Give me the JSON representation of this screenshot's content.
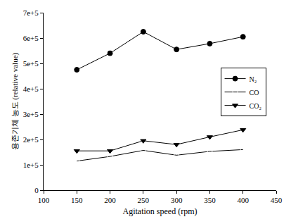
{
  "chart_data": {
    "type": "line",
    "x_label": "Agitation speed (rpm)",
    "y_label": "용존기체 농도 (relative value)",
    "xlim": [
      100,
      450
    ],
    "xticks": [
      100,
      150,
      200,
      250,
      300,
      350,
      400,
      450
    ],
    "ylim": [
      0,
      700000
    ],
    "yticks": [
      0,
      {
        "value": 100000,
        "label": "1e+5"
      },
      {
        "value": 200000,
        "label": "2e+5"
      },
      {
        "value": 300000,
        "label": "3e+5"
      },
      {
        "value": 400000,
        "label": "4e+5"
      },
      {
        "value": 500000,
        "label": "5e+5"
      },
      {
        "value": 600000,
        "label": "6e+5"
      },
      {
        "value": 700000,
        "label": "7e+5"
      }
    ],
    "grid": false,
    "legend": "right",
    "x": [
      150,
      200,
      250,
      300,
      350,
      400
    ],
    "series": [
      {
        "name": "N₂",
        "color": "#000000",
        "marker": "circle",
        "values": [
          475000,
          540000,
          625000,
          555000,
          578000,
          605000
        ]
      },
      {
        "name": "CO",
        "color": "#000000",
        "marker": "circle-open",
        "values": [
          115000,
          133000,
          157000,
          138000,
          153000,
          160000
        ]
      },
      {
        "name": "CO₂",
        "color": "#000000",
        "marker": "triangle-down",
        "values": [
          155000,
          155000,
          195000,
          180000,
          210000,
          238000
        ]
      }
    ]
  }
}
